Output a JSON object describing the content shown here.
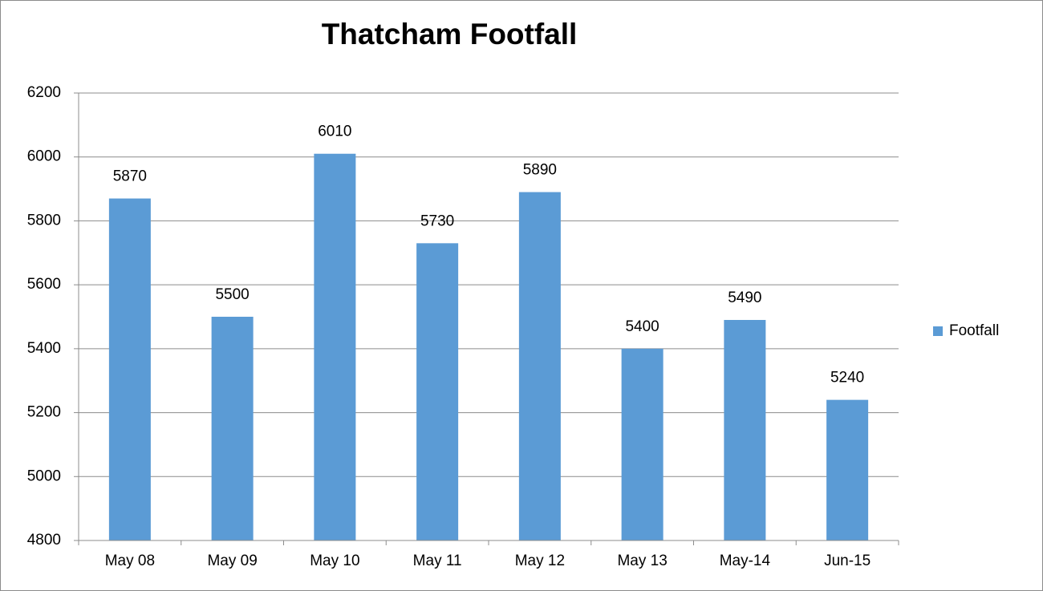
{
  "chart_data": {
    "type": "bar",
    "title": "Thatcham Footfall",
    "categories": [
      "May 08",
      "May 09",
      "May 10",
      "May 11",
      "May 12",
      "May 13",
      "May-14",
      "Jun-15"
    ],
    "series": [
      {
        "name": "Footfall",
        "color": "#5b9bd5",
        "values": [
          5870,
          5500,
          6010,
          5730,
          5890,
          5400,
          5490,
          5240
        ]
      }
    ],
    "ylim": [
      4800,
      6200
    ],
    "yticks": [
      4800,
      5000,
      5200,
      5400,
      5600,
      5800,
      6000,
      6200
    ],
    "grid": true,
    "legend": "right"
  }
}
